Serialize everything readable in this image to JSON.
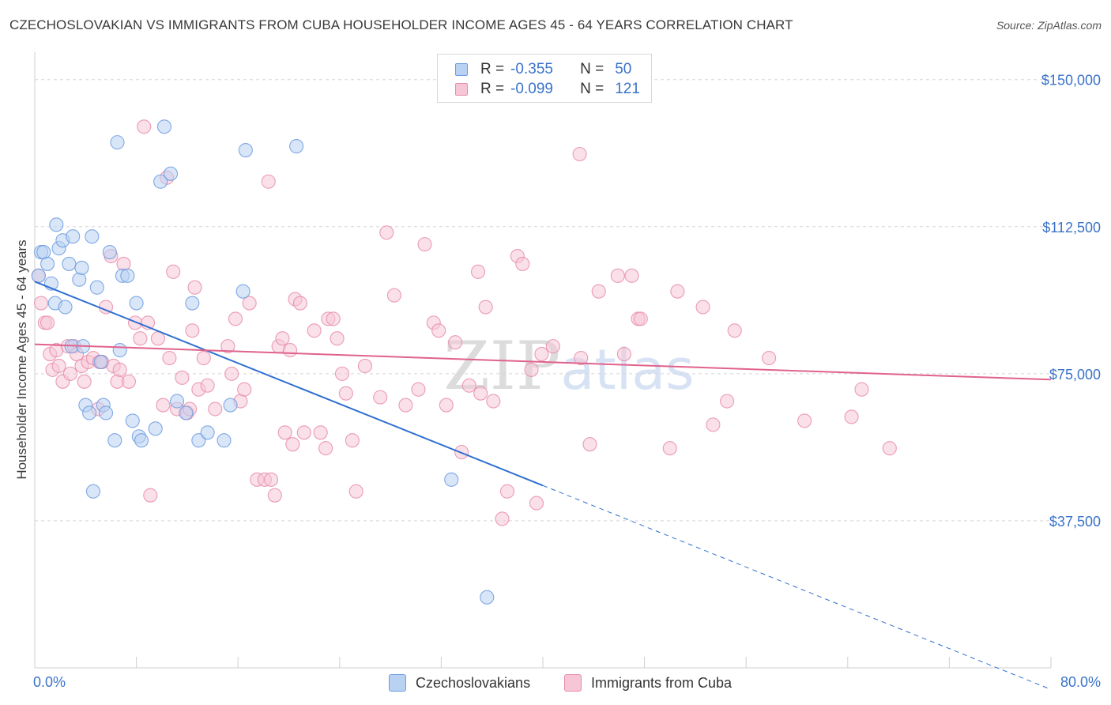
{
  "chart_data": {
    "type": "scatter",
    "title": "CZECHOSLOVAKIAN VS IMMIGRANTS FROM CUBA HOUSEHOLDER INCOME AGES 45 - 64 YEARS CORRELATION CHART",
    "source": "Source: ZipAtlas.com",
    "ylabel": "Householder Income Ages 45 - 64 years",
    "xlabel": "",
    "xlim": [
      0,
      80
    ],
    "ylim": [
      0,
      157000
    ],
    "x_tick_labels": [
      "0.0%",
      "80.0%"
    ],
    "y_ticks": [
      {
        "value": 150000,
        "label": "$150,000"
      },
      {
        "value": 112500,
        "label": "$112,500"
      },
      {
        "value": 75000,
        "label": "$75,000"
      },
      {
        "value": 37500,
        "label": "$37,500"
      }
    ],
    "watermark": "ZIPatlas",
    "legend": [
      {
        "series": "Czechoslovakians",
        "r_label": "R =",
        "r": "-0.355",
        "n_label": "N =",
        "n": "50"
      },
      {
        "series": "Immigrants from Cuba",
        "r_label": "R =",
        "r": "-0.099",
        "n_label": "N =",
        "n": "121"
      }
    ],
    "series": [
      {
        "name": "Czechoslovakians",
        "color": "#6b9be0",
        "fill": "#b9d1f3",
        "trend": {
          "x0": 0,
          "y0": 98500,
          "x1": 40,
          "y1": 46500,
          "dash_to_x": 80,
          "dash_to_y": -5500
        },
        "points": [
          [
            0.5,
            106
          ],
          [
            0.7,
            106
          ],
          [
            1.0,
            103
          ],
          [
            1.3,
            98
          ],
          [
            1.6,
            93
          ],
          [
            1.7,
            113
          ],
          [
            1.9,
            107
          ],
          [
            2.2,
            109
          ],
          [
            2.4,
            92
          ],
          [
            2.7,
            103
          ],
          [
            2.9,
            82
          ],
          [
            3.0,
            110
          ],
          [
            3.5,
            99
          ],
          [
            3.7,
            102
          ],
          [
            3.8,
            82
          ],
          [
            4.0,
            67
          ],
          [
            4.3,
            65
          ],
          [
            4.5,
            110
          ],
          [
            4.6,
            45
          ],
          [
            4.9,
            97
          ],
          [
            5.2,
            78
          ],
          [
            5.4,
            67
          ],
          [
            5.6,
            65
          ],
          [
            5.9,
            106
          ],
          [
            6.3,
            58
          ],
          [
            6.5,
            134
          ],
          [
            6.9,
            100
          ],
          [
            6.7,
            81
          ],
          [
            7.3,
            100
          ],
          [
            7.7,
            63
          ],
          [
            8.0,
            93
          ],
          [
            8.2,
            59
          ],
          [
            8.4,
            58
          ],
          [
            9.5,
            61
          ],
          [
            9.9,
            124
          ],
          [
            10.2,
            138
          ],
          [
            10.7,
            126
          ],
          [
            11.2,
            68
          ],
          [
            11.9,
            65
          ],
          [
            12.4,
            93
          ],
          [
            12.9,
            58
          ],
          [
            13.6,
            60
          ],
          [
            14.9,
            58
          ],
          [
            15.4,
            67
          ],
          [
            16.4,
            96
          ],
          [
            16.6,
            132
          ],
          [
            20.6,
            133
          ],
          [
            32.8,
            48
          ],
          [
            35.6,
            18
          ],
          [
            0.3,
            100
          ]
        ]
      },
      {
        "name": "Immigrants from Cuba",
        "color": "#e88ca9",
        "fill": "#f6c6d6",
        "trend": {
          "x0": 0,
          "y0": 82500,
          "x1": 80,
          "y1": 73500
        },
        "points": [
          [
            0.3,
            100
          ],
          [
            0.5,
            93
          ],
          [
            0.8,
            88
          ],
          [
            1.0,
            88
          ],
          [
            1.2,
            80
          ],
          [
            1.4,
            76
          ],
          [
            1.7,
            81
          ],
          [
            1.9,
            77
          ],
          [
            2.2,
            73
          ],
          [
            2.6,
            82
          ],
          [
            2.8,
            75
          ],
          [
            3.1,
            82
          ],
          [
            3.3,
            80
          ],
          [
            3.7,
            77
          ],
          [
            3.9,
            73
          ],
          [
            4.2,
            78
          ],
          [
            4.6,
            79
          ],
          [
            5.0,
            66
          ],
          [
            5.1,
            78
          ],
          [
            5.3,
            78
          ],
          [
            5.6,
            92
          ],
          [
            6.0,
            105
          ],
          [
            6.2,
            77
          ],
          [
            6.5,
            73
          ],
          [
            6.7,
            76
          ],
          [
            7.0,
            103
          ],
          [
            7.4,
            73
          ],
          [
            7.9,
            88
          ],
          [
            8.3,
            84
          ],
          [
            8.6,
            138
          ],
          [
            8.9,
            88
          ],
          [
            9.1,
            44
          ],
          [
            9.7,
            84
          ],
          [
            10.1,
            67
          ],
          [
            10.4,
            125
          ],
          [
            10.6,
            79
          ],
          [
            10.9,
            101
          ],
          [
            11.2,
            66
          ],
          [
            11.6,
            74
          ],
          [
            12.0,
            65
          ],
          [
            12.2,
            66
          ],
          [
            12.4,
            86
          ],
          [
            12.6,
            97
          ],
          [
            12.9,
            71
          ],
          [
            13.3,
            79
          ],
          [
            13.6,
            72
          ],
          [
            14.2,
            66
          ],
          [
            15.2,
            82
          ],
          [
            15.5,
            75
          ],
          [
            15.8,
            89
          ],
          [
            16.2,
            68
          ],
          [
            16.5,
            71
          ],
          [
            16.9,
            93
          ],
          [
            17.5,
            48
          ],
          [
            18.1,
            48
          ],
          [
            18.4,
            124
          ],
          [
            18.6,
            48
          ],
          [
            18.9,
            44
          ],
          [
            19.2,
            82
          ],
          [
            19.5,
            84
          ],
          [
            19.7,
            60
          ],
          [
            20.1,
            81
          ],
          [
            20.3,
            57
          ],
          [
            20.5,
            94
          ],
          [
            20.9,
            93
          ],
          [
            21.2,
            60
          ],
          [
            22.0,
            86
          ],
          [
            22.5,
            60
          ],
          [
            22.9,
            56
          ],
          [
            23.1,
            89
          ],
          [
            23.5,
            89
          ],
          [
            23.8,
            84
          ],
          [
            24.2,
            75
          ],
          [
            24.5,
            70
          ],
          [
            25.0,
            58
          ],
          [
            25.3,
            45
          ],
          [
            26.0,
            77
          ],
          [
            27.2,
            69
          ],
          [
            27.7,
            111
          ],
          [
            28.3,
            95
          ],
          [
            29.2,
            67
          ],
          [
            30.2,
            71
          ],
          [
            30.7,
            108
          ],
          [
            31.4,
            88
          ],
          [
            31.8,
            86
          ],
          [
            32.4,
            67
          ],
          [
            33.1,
            83
          ],
          [
            33.6,
            55
          ],
          [
            34.2,
            72
          ],
          [
            34.9,
            101
          ],
          [
            35.1,
            70
          ],
          [
            35.5,
            92
          ],
          [
            36.1,
            68
          ],
          [
            36.8,
            38
          ],
          [
            37.2,
            45
          ],
          [
            38.0,
            105
          ],
          [
            38.4,
            103
          ],
          [
            39.1,
            76
          ],
          [
            39.5,
            42
          ],
          [
            39.9,
            80
          ],
          [
            40.8,
            82
          ],
          [
            42.9,
            131
          ],
          [
            43.0,
            79
          ],
          [
            43.7,
            57
          ],
          [
            44.4,
            96
          ],
          [
            45.9,
            100
          ],
          [
            46.4,
            80
          ],
          [
            47.0,
            100
          ],
          [
            47.5,
            89
          ],
          [
            47.7,
            89
          ],
          [
            50.0,
            56
          ],
          [
            50.6,
            96
          ],
          [
            52.6,
            92
          ],
          [
            53.4,
            62
          ],
          [
            54.5,
            68
          ],
          [
            55.1,
            86
          ],
          [
            57.8,
            79
          ],
          [
            60.6,
            63
          ],
          [
            64.3,
            64
          ],
          [
            65.1,
            71
          ],
          [
            67.3,
            56
          ]
        ]
      }
    ]
  }
}
